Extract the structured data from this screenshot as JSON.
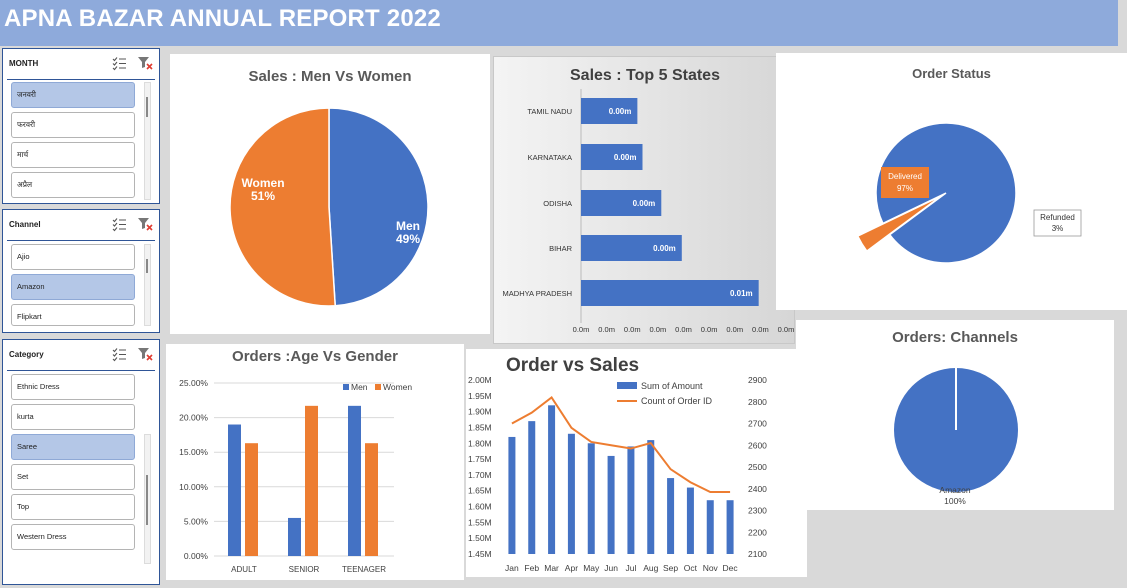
{
  "title": "APNA BAZAR ANNUAL REPORT 2022",
  "colors": {
    "blue": "#4472c4",
    "orange": "#ed7d31",
    "header": "#8eaadb"
  },
  "slicers": {
    "month": {
      "label": "MONTH",
      "items": [
        "जनवरी",
        "फरवरी",
        "मार्च",
        "अप्रैल"
      ],
      "selected": [
        0
      ]
    },
    "channel": {
      "label": "Channel",
      "items": [
        "Ajio",
        "Amazon",
        "Flipkart"
      ],
      "selected": [
        1
      ]
    },
    "category": {
      "label": "Category",
      "items": [
        "Ethnic Dress",
        "kurta",
        "Saree",
        "Set",
        "Top",
        "Western Dress"
      ],
      "selected": [
        2
      ]
    }
  },
  "chart_data": [
    {
      "type": "pie",
      "title": "Sales : Men Vs Women",
      "labels": [
        "Men",
        "Women"
      ],
      "values": [
        49,
        51
      ],
      "data_labels": [
        "49%",
        "51%"
      ]
    },
    {
      "type": "bar",
      "orientation": "horizontal",
      "title": "Sales : Top 5 States",
      "categories": [
        "TAMIL NADU",
        "KARNATAKA",
        "ODISHA",
        "BIHAR",
        "MADHYA PRADESH"
      ],
      "values": [
        0.0033,
        0.0036,
        0.0047,
        0.0059,
        0.0104
      ],
      "data_labels": [
        "0.00m",
        "0.00m",
        "0.00m",
        "0.00m",
        "0.01m"
      ],
      "xlim": [
        0,
        0.012
      ],
      "x_tick_labels": [
        "0.0m",
        "0.0m",
        "0.0m",
        "0.0m",
        "0.0m",
        "0.0m",
        "0.0m",
        "0.0m",
        "0.0m"
      ]
    },
    {
      "type": "pie",
      "title": "Order Status",
      "labels": [
        "Delivered",
        "Refunded"
      ],
      "values": [
        97,
        3
      ],
      "data_labels": [
        "97%",
        "3%"
      ]
    },
    {
      "type": "bar",
      "title": "Orders :Age Vs Gender",
      "categories": [
        "ADULT",
        "SENIOR",
        "TEENAGER"
      ],
      "series": [
        {
          "name": "Men",
          "values": [
            19.0,
            5.5,
            21.7
          ]
        },
        {
          "name": "Women",
          "values": [
            16.3,
            21.7,
            16.3
          ]
        }
      ],
      "ylim": [
        0,
        25
      ],
      "y_tick_labels": [
        "0.00%",
        "5.00%",
        "10.00%",
        "15.00%",
        "20.00%",
        "25.00%"
      ],
      "legend": "top-right"
    },
    {
      "type": "bar+line",
      "title": "Order vs Sales",
      "categories": [
        "Jan",
        "Feb",
        "Mar",
        "Apr",
        "May",
        "Jun",
        "Jul",
        "Aug",
        "Sep",
        "Oct",
        "Nov",
        "Dec"
      ],
      "series": [
        {
          "name": "Sum of Amount",
          "type": "bar",
          "axis": "left",
          "values": [
            1.82,
            1.87,
            1.92,
            1.83,
            1.8,
            1.76,
            1.79,
            1.81,
            1.69,
            1.66,
            1.62,
            1.62
          ]
        },
        {
          "name": "Count of Order ID",
          "type": "line",
          "axis": "right",
          "values": [
            2700,
            2750,
            2820,
            2680,
            2615,
            2600,
            2585,
            2610,
            2490,
            2430,
            2385,
            2385
          ]
        }
      ],
      "ylim": [
        1.45,
        2.0
      ],
      "y_tick_labels": [
        "1.45M",
        "1.50M",
        "1.55M",
        "1.60M",
        "1.65M",
        "1.70M",
        "1.75M",
        "1.80M",
        "1.85M",
        "1.90M",
        "1.95M",
        "2.00M"
      ],
      "y2lim": [
        2100,
        2900
      ],
      "y2_tick_labels": [
        "2100",
        "2200",
        "2300",
        "2400",
        "2500",
        "2600",
        "2700",
        "2800",
        "2900"
      ],
      "legend": "top-right"
    },
    {
      "type": "pie",
      "title": "Orders: Channels",
      "labels": [
        "Amazon"
      ],
      "values": [
        100
      ],
      "data_labels": [
        "100%"
      ]
    }
  ]
}
